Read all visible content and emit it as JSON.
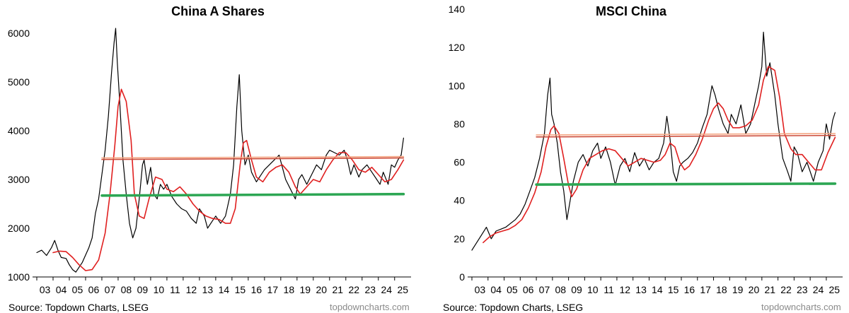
{
  "chart_data": [
    {
      "type": "line",
      "title": "China A Shares",
      "ylim": [
        1000,
        6000
      ],
      "yticks": [
        1000,
        2000,
        3000,
        4000,
        5000,
        6000
      ],
      "xlim": [
        2003.0,
        2025.75
      ],
      "xtick_labels": [
        "03",
        "04",
        "05",
        "06",
        "07",
        "08",
        "09",
        "10",
        "11",
        "12",
        "13",
        "14",
        "15",
        "16",
        "17",
        "18",
        "19",
        "20",
        "21",
        "22",
        "23",
        "24",
        "25"
      ],
      "series": [
        {
          "color": "#000000",
          "x": [
            2003.0,
            2003.3,
            2003.6,
            2003.9,
            2004.1,
            2004.3,
            2004.5,
            2004.8,
            2005.0,
            2005.2,
            2005.4,
            2005.6,
            2005.8,
            2006.0,
            2006.2,
            2006.4,
            2006.6,
            2006.8,
            2007.0,
            2007.2,
            2007.4,
            2007.6,
            2007.75,
            2007.85,
            2007.95,
            2008.1,
            2008.3,
            2008.5,
            2008.7,
            2008.9,
            2009.1,
            2009.3,
            2009.5,
            2009.6,
            2009.8,
            2010.0,
            2010.2,
            2010.4,
            2010.6,
            2010.8,
            2011.0,
            2011.3,
            2011.6,
            2011.9,
            2012.2,
            2012.5,
            2012.8,
            2013.0,
            2013.3,
            2013.5,
            2013.8,
            2014.0,
            2014.3,
            2014.6,
            2014.9,
            2015.1,
            2015.3,
            2015.45,
            2015.6,
            2015.8,
            2016.0,
            2016.2,
            2016.5,
            2016.8,
            2017.0,
            2017.3,
            2017.6,
            2017.9,
            2018.1,
            2018.3,
            2018.6,
            2018.9,
            2019.1,
            2019.3,
            2019.6,
            2019.9,
            2020.2,
            2020.5,
            2020.8,
            2021.0,
            2021.3,
            2021.6,
            2021.9,
            2022.1,
            2022.3,
            2022.5,
            2022.8,
            2023.0,
            2023.3,
            2023.6,
            2023.9,
            2024.1,
            2024.3,
            2024.6,
            2024.8,
            2025.0,
            2025.2,
            2025.4,
            2025.55
          ],
          "values": [
            1500,
            1550,
            1440,
            1600,
            1750,
            1550,
            1400,
            1380,
            1250,
            1150,
            1100,
            1200,
            1300,
            1450,
            1600,
            1800,
            2300,
            2600,
            3100,
            3600,
            4300,
            5200,
            5800,
            6100,
            5400,
            4600,
            3400,
            2700,
            2100,
            1800,
            2000,
            2600,
            3300,
            3400,
            2900,
            3250,
            2700,
            2600,
            2900,
            2800,
            2900,
            2650,
            2500,
            2400,
            2350,
            2200,
            2100,
            2400,
            2250,
            2000,
            2150,
            2250,
            2100,
            2250,
            2700,
            3300,
            4500,
            5150,
            4000,
            3300,
            3500,
            3150,
            2950,
            3100,
            3200,
            3300,
            3400,
            3500,
            3250,
            3000,
            2800,
            2600,
            3000,
            3100,
            2900,
            3100,
            3300,
            3200,
            3500,
            3600,
            3550,
            3500,
            3600,
            3400,
            3100,
            3300,
            3050,
            3200,
            3300,
            3150,
            3000,
            2900,
            3150,
            2900,
            3300,
            3250,
            3400,
            3500,
            3850
          ]
        },
        {
          "color": "#e02020",
          "x": [
            2004.0,
            2004.4,
            2004.8,
            2005.2,
            2005.6,
            2006.0,
            2006.4,
            2006.8,
            2007.2,
            2007.5,
            2007.8,
            2008.0,
            2008.2,
            2008.5,
            2008.8,
            2009.0,
            2009.3,
            2009.6,
            2009.9,
            2010.3,
            2010.7,
            2011.0,
            2011.4,
            2011.8,
            2012.2,
            2012.6,
            2013.0,
            2013.4,
            2013.8,
            2014.2,
            2014.6,
            2014.9,
            2015.2,
            2015.5,
            2015.7,
            2015.9,
            2016.2,
            2016.5,
            2016.9,
            2017.3,
            2017.7,
            2018.1,
            2018.5,
            2018.9,
            2019.2,
            2019.6,
            2020.0,
            2020.4,
            2020.8,
            2021.2,
            2021.6,
            2022.0,
            2022.4,
            2022.8,
            2023.2,
            2023.6,
            2024.0,
            2024.4,
            2024.8,
            2025.2,
            2025.55
          ],
          "values": [
            1500,
            1530,
            1520,
            1400,
            1250,
            1130,
            1150,
            1350,
            1900,
            2700,
            3700,
            4500,
            4850,
            4600,
            3800,
            2700,
            2250,
            2200,
            2600,
            3050,
            3000,
            2800,
            2750,
            2850,
            2700,
            2500,
            2350,
            2250,
            2200,
            2180,
            2100,
            2100,
            2400,
            3300,
            3750,
            3800,
            3400,
            3050,
            2950,
            3150,
            3250,
            3300,
            3150,
            2850,
            2700,
            2850,
            3000,
            2950,
            3200,
            3400,
            3550,
            3550,
            3400,
            3200,
            3150,
            3250,
            3100,
            2950,
            3000,
            3200,
            3400
          ]
        },
        {
          "color": "#f4a582",
          "x": [
            2007.0,
            2025.55
          ],
          "values": [
            3440,
            3470
          ]
        },
        {
          "color": "#cc4c3a",
          "x": [
            2007.0,
            2025.55
          ],
          "values": [
            3410,
            3440
          ]
        },
        {
          "color": "#2ca653",
          "x": [
            2007.0,
            2025.55
          ],
          "values": [
            2670,
            2700
          ]
        }
      ],
      "source": "Source: Topdown Charts, LSEG",
      "watermark": "topdowncharts.com"
    },
    {
      "type": "line",
      "title": "MSCI China",
      "ylim": [
        0,
        140
      ],
      "yticks": [
        0,
        20,
        40,
        60,
        80,
        100,
        120,
        140
      ],
      "xlim": [
        2003.0,
        2025.75
      ],
      "xtick_labels": [
        "03",
        "04",
        "05",
        "06",
        "07",
        "08",
        "09",
        "10",
        "11",
        "12",
        "13",
        "14",
        "15",
        "16",
        "17",
        "18",
        "19",
        "20",
        "21",
        "22",
        "23",
        "24",
        "25"
      ],
      "series": [
        {
          "color": "#000000",
          "x": [
            2003.0,
            2003.3,
            2003.6,
            2003.9,
            2004.2,
            2004.5,
            2004.8,
            2005.1,
            2005.4,
            2005.7,
            2006.0,
            2006.3,
            2006.6,
            2006.9,
            2007.2,
            2007.5,
            2007.7,
            2007.85,
            2007.95,
            2008.1,
            2008.3,
            2008.5,
            2008.7,
            2008.9,
            2009.1,
            2009.3,
            2009.6,
            2009.9,
            2010.2,
            2010.5,
            2010.8,
            2011.0,
            2011.3,
            2011.6,
            2011.9,
            2012.2,
            2012.5,
            2012.8,
            2013.1,
            2013.4,
            2013.7,
            2014.0,
            2014.3,
            2014.6,
            2014.9,
            2015.1,
            2015.3,
            2015.5,
            2015.7,
            2015.9,
            2016.1,
            2016.4,
            2016.7,
            2017.0,
            2017.3,
            2017.6,
            2017.9,
            2018.1,
            2018.3,
            2018.6,
            2018.9,
            2019.1,
            2019.4,
            2019.7,
            2020.0,
            2020.3,
            2020.6,
            2020.8,
            2021.0,
            2021.1,
            2021.3,
            2021.5,
            2021.8,
            2022.0,
            2022.3,
            2022.6,
            2022.8,
            2023.0,
            2023.2,
            2023.5,
            2023.8,
            2024.0,
            2024.2,
            2024.5,
            2024.8,
            2025.0,
            2025.2,
            2025.4,
            2025.55
          ],
          "values": [
            14,
            18,
            22,
            26,
            20,
            24,
            25,
            26,
            28,
            30,
            33,
            38,
            45,
            52,
            62,
            75,
            95,
            104,
            85,
            80,
            70,
            55,
            45,
            30,
            40,
            50,
            60,
            64,
            58,
            66,
            70,
            62,
            68,
            60,
            48,
            58,
            62,
            55,
            65,
            58,
            62,
            56,
            60,
            62,
            70,
            84,
            72,
            55,
            50,
            58,
            60,
            62,
            65,
            70,
            78,
            85,
            100,
            95,
            88,
            80,
            75,
            85,
            80,
            90,
            75,
            80,
            92,
            100,
            110,
            128,
            105,
            112,
            95,
            80,
            62,
            55,
            50,
            68,
            65,
            55,
            60,
            55,
            50,
            60,
            66,
            80,
            72,
            82,
            86
          ]
        },
        {
          "color": "#e02020",
          "x": [
            2003.7,
            2004.1,
            2004.5,
            2004.9,
            2005.3,
            2005.7,
            2006.1,
            2006.5,
            2006.9,
            2007.3,
            2007.6,
            2007.9,
            2008.1,
            2008.4,
            2008.7,
            2009.0,
            2009.2,
            2009.5,
            2009.9,
            2010.3,
            2010.7,
            2011.1,
            2011.5,
            2011.9,
            2012.3,
            2012.7,
            2013.1,
            2013.5,
            2013.9,
            2014.3,
            2014.7,
            2015.0,
            2015.3,
            2015.6,
            2015.9,
            2016.2,
            2016.5,
            2016.9,
            2017.3,
            2017.7,
            2018.0,
            2018.3,
            2018.6,
            2018.9,
            2019.2,
            2019.6,
            2020.0,
            2020.4,
            2020.8,
            2021.1,
            2021.4,
            2021.8,
            2022.1,
            2022.4,
            2022.8,
            2023.1,
            2023.5,
            2023.9,
            2024.3,
            2024.7,
            2025.1,
            2025.55
          ],
          "values": [
            18,
            21,
            23,
            24,
            25,
            27,
            30,
            36,
            44,
            55,
            68,
            77,
            79,
            75,
            62,
            48,
            42,
            46,
            56,
            62,
            64,
            66,
            67,
            66,
            62,
            58,
            60,
            62,
            61,
            60,
            61,
            64,
            70,
            68,
            60,
            56,
            58,
            64,
            72,
            82,
            88,
            91,
            88,
            82,
            78,
            78,
            79,
            82,
            90,
            103,
            110,
            108,
            94,
            75,
            67,
            64,
            64,
            60,
            56,
            56,
            65,
            73
          ]
        },
        {
          "color": "#f4a582",
          "x": [
            2007.0,
            2025.55
          ],
          "values": [
            74.2,
            75.0
          ]
        },
        {
          "color": "#cc4c3a",
          "x": [
            2007.0,
            2025.55
          ],
          "values": [
            73.2,
            74.0
          ]
        },
        {
          "color": "#2ca653",
          "x": [
            2007.0,
            2025.55
          ],
          "values": [
            48.3,
            48.8
          ]
        }
      ],
      "source": "Source: Topdown Charts, LSEG",
      "watermark": "topdowncharts.com"
    }
  ]
}
